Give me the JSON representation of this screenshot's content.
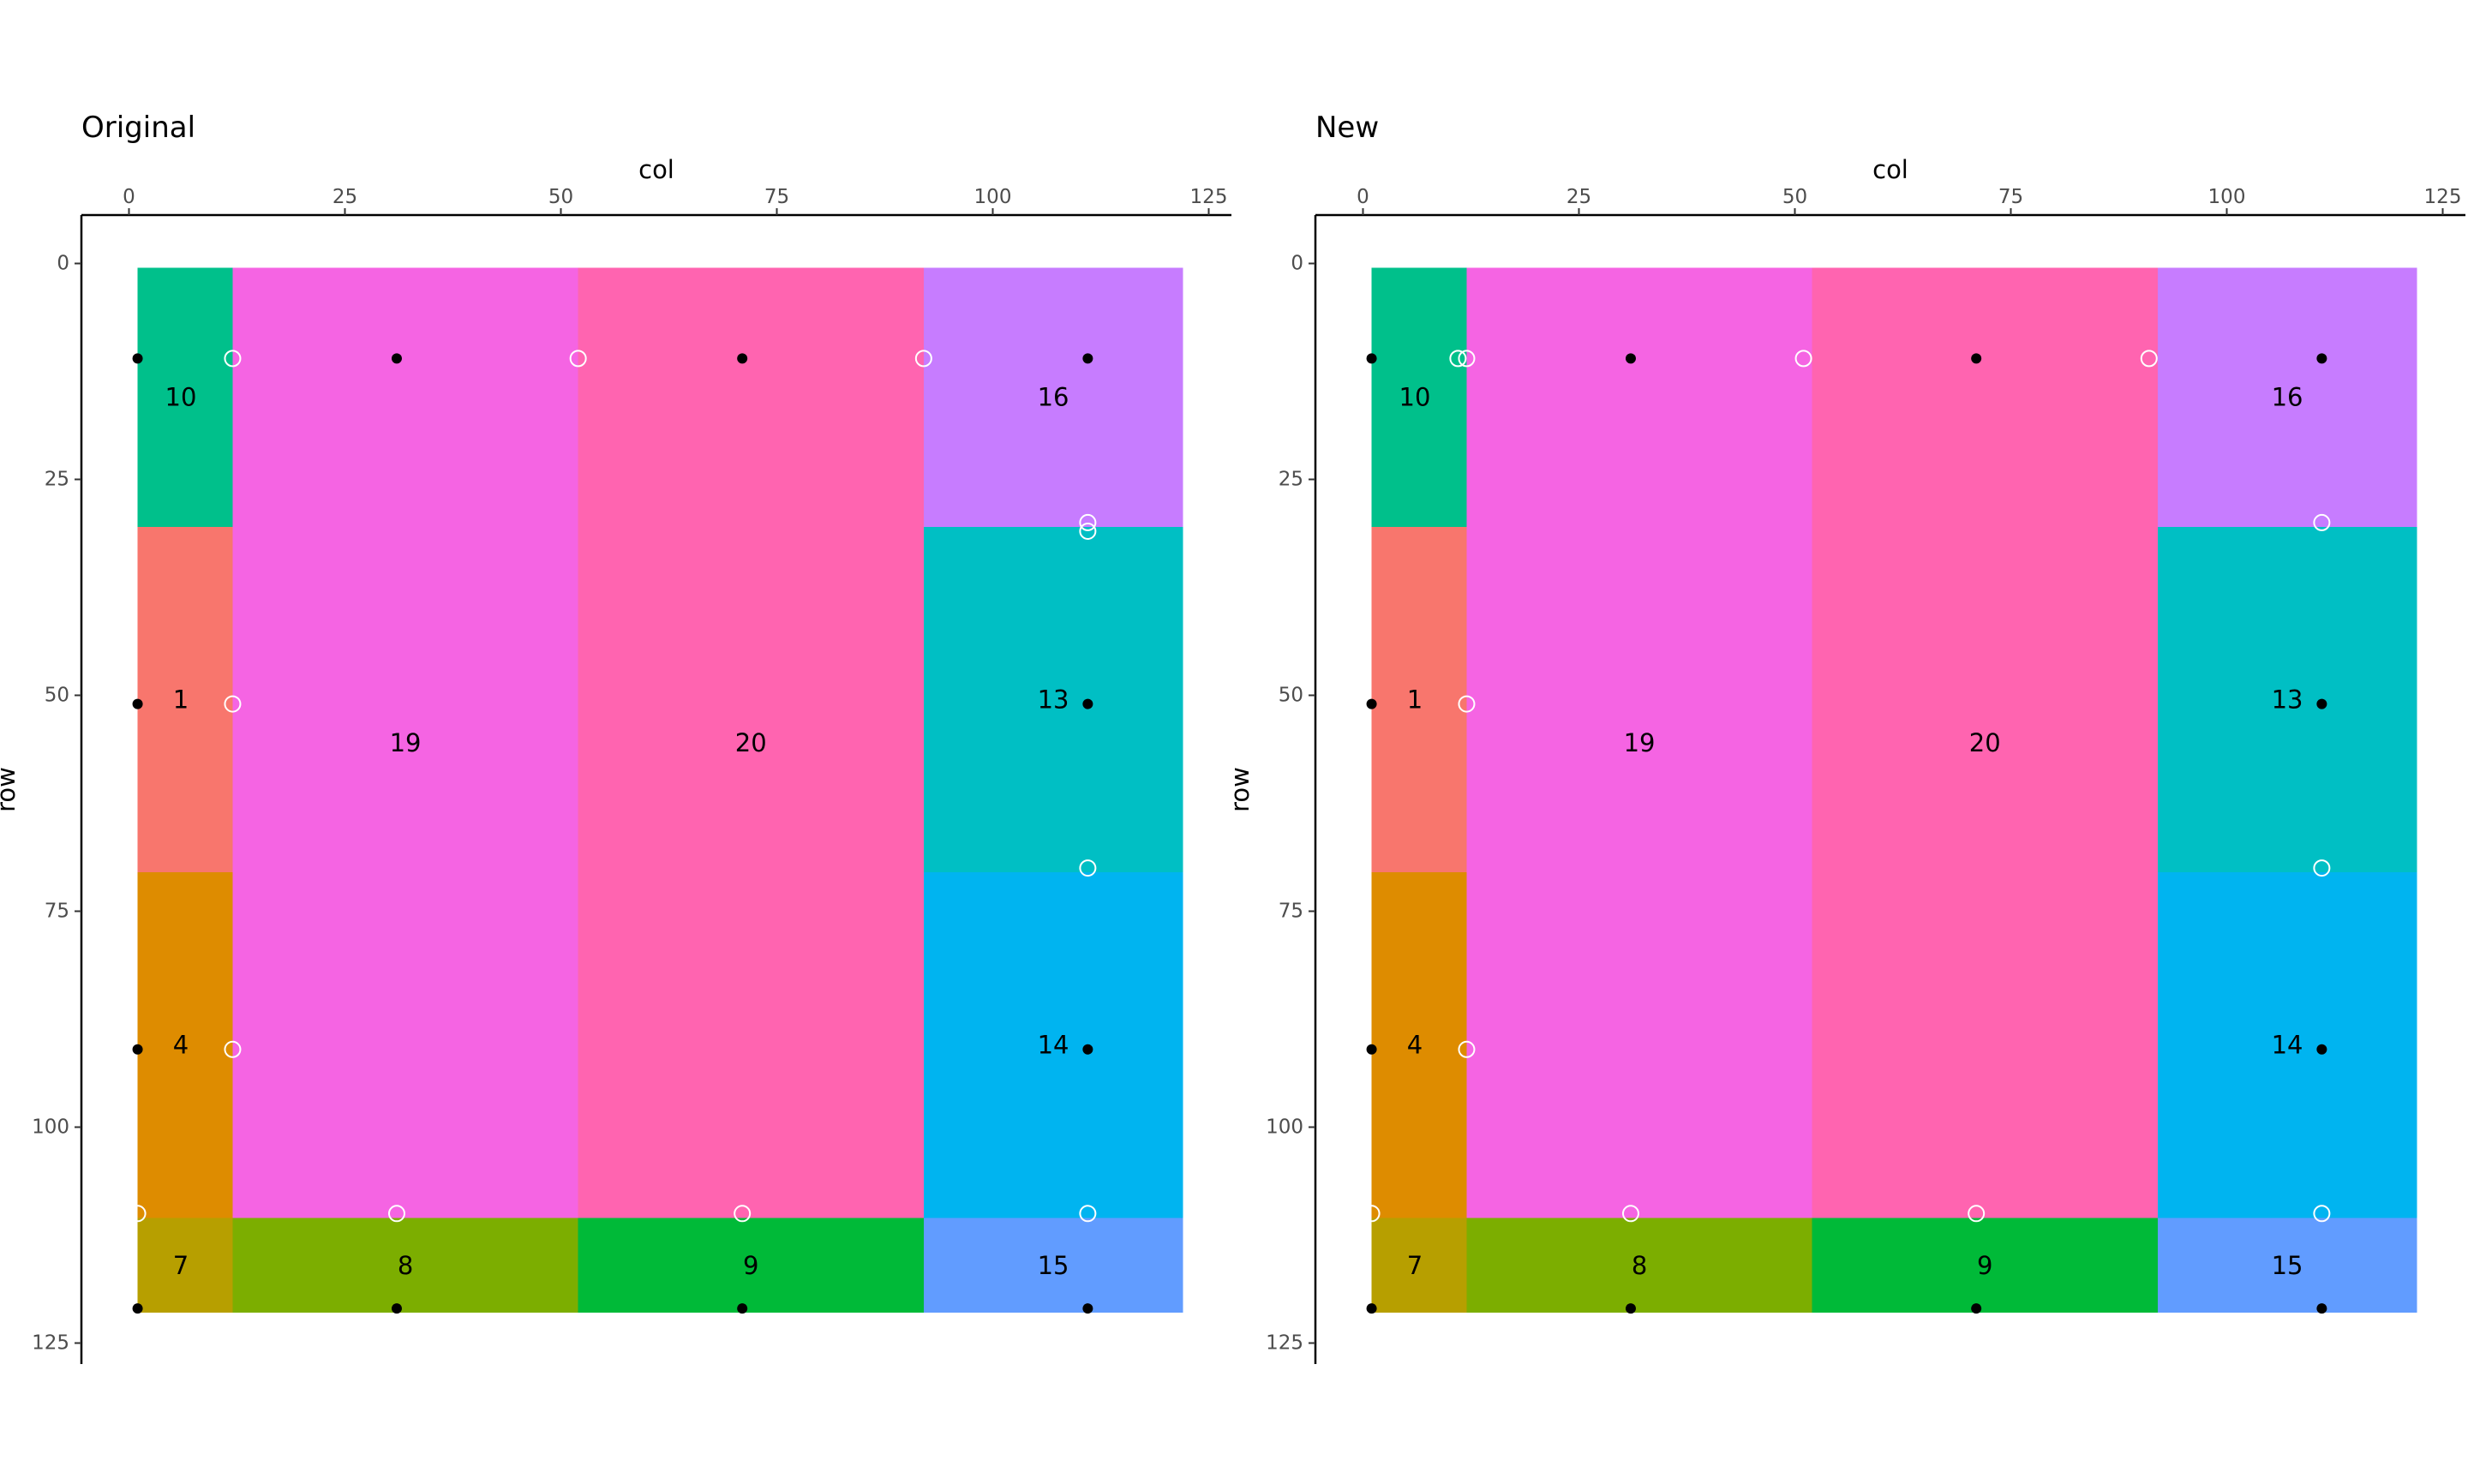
{
  "colors": {
    "1": "#F8766D",
    "4": "#DE8C00",
    "7": "#B79F00",
    "8": "#7CAE00",
    "9": "#00BA38",
    "10": "#00C08B",
    "13": "#00BFC4",
    "14": "#00B4F0",
    "15": "#619CFF",
    "16": "#C77CFF",
    "19": "#F564E3",
    "20": "#FF64B0",
    "point_filled": "#000000",
    "point_open": "#ffffff",
    "axis": "#000000"
  },
  "chart_data": [
    {
      "type": "heatmap",
      "title": "Original",
      "xlabel": "col",
      "ylabel": "row",
      "xlim": [
        -5,
        127
      ],
      "ylim": [
        -6,
        127
      ],
      "x_axis_position": "top",
      "y_reversed": true,
      "grid": false,
      "x_ticks": [
        0,
        25,
        50,
        75,
        100,
        125
      ],
      "y_ticks": [
        0,
        25,
        50,
        75,
        100,
        125
      ],
      "regions": [
        {
          "id": "10",
          "x": [
            1,
            12
          ],
          "y": [
            0.5,
            30.5
          ]
        },
        {
          "id": "1",
          "x": [
            1,
            12
          ],
          "y": [
            30.5,
            70.5
          ]
        },
        {
          "id": "4",
          "x": [
            1,
            12
          ],
          "y": [
            70.5,
            110.5
          ]
        },
        {
          "id": "7",
          "x": [
            1,
            12
          ],
          "y": [
            110.5,
            121.5
          ]
        },
        {
          "id": "19",
          "x": [
            12,
            52
          ],
          "y": [
            0.5,
            110.5
          ]
        },
        {
          "id": "20",
          "x": [
            52,
            92
          ],
          "y": [
            0.5,
            110.5
          ]
        },
        {
          "id": "8",
          "x": [
            12,
            52
          ],
          "y": [
            110.5,
            121.5
          ]
        },
        {
          "id": "9",
          "x": [
            52,
            92
          ],
          "y": [
            110.5,
            121.5
          ]
        },
        {
          "id": "16",
          "x": [
            92,
            122
          ],
          "y": [
            0.5,
            30.5
          ]
        },
        {
          "id": "13",
          "x": [
            92,
            122
          ],
          "y": [
            30.5,
            70.5
          ]
        },
        {
          "id": "14",
          "x": [
            92,
            122
          ],
          "y": [
            70.5,
            110.5
          ]
        },
        {
          "id": "15",
          "x": [
            92,
            122
          ],
          "y": [
            110.5,
            121.5
          ]
        }
      ],
      "labels": [
        {
          "text": "10",
          "x": 6,
          "y": 15.5
        },
        {
          "text": "1",
          "x": 6,
          "y": 50.5
        },
        {
          "text": "4",
          "x": 6,
          "y": 90.5
        },
        {
          "text": "7",
          "x": 6,
          "y": 116
        },
        {
          "text": "19",
          "x": 32,
          "y": 55.5
        },
        {
          "text": "20",
          "x": 72,
          "y": 55.5
        },
        {
          "text": "8",
          "x": 32,
          "y": 116
        },
        {
          "text": "9",
          "x": 72,
          "y": 116
        },
        {
          "text": "16",
          "x": 107,
          "y": 15.5
        },
        {
          "text": "13",
          "x": 107,
          "y": 50.5
        },
        {
          "text": "14",
          "x": 107,
          "y": 90.5
        },
        {
          "text": "15",
          "x": 107,
          "y": 116
        }
      ],
      "filled_points": [
        {
          "x": 1,
          "y": 11
        },
        {
          "x": 31,
          "y": 11
        },
        {
          "x": 71,
          "y": 11
        },
        {
          "x": 111,
          "y": 11
        },
        {
          "x": 1,
          "y": 51
        },
        {
          "x": 111,
          "y": 51
        },
        {
          "x": 1,
          "y": 91
        },
        {
          "x": 111,
          "y": 91
        },
        {
          "x": 1,
          "y": 121
        },
        {
          "x": 31,
          "y": 121
        },
        {
          "x": 71,
          "y": 121
        },
        {
          "x": 111,
          "y": 121
        }
      ],
      "open_points": [
        {
          "x": 12,
          "y": 11
        },
        {
          "x": 52,
          "y": 11
        },
        {
          "x": 92,
          "y": 11
        },
        {
          "x": 111,
          "y": 30
        },
        {
          "x": 111,
          "y": 31
        },
        {
          "x": 12,
          "y": 51
        },
        {
          "x": 111,
          "y": 70
        },
        {
          "x": 12,
          "y": 91
        },
        {
          "x": 1,
          "y": 110
        },
        {
          "x": 31,
          "y": 110
        },
        {
          "x": 71,
          "y": 110
        },
        {
          "x": 111,
          "y": 110
        }
      ]
    },
    {
      "type": "heatmap",
      "title": "New",
      "xlabel": "col",
      "ylabel": "row",
      "xlim": [
        -5,
        127
      ],
      "ylim": [
        -6,
        127
      ],
      "x_axis_position": "top",
      "y_reversed": true,
      "grid": false,
      "x_ticks": [
        0,
        25,
        50,
        75,
        100,
        125
      ],
      "y_ticks": [
        0,
        25,
        50,
        75,
        100,
        125
      ],
      "regions": [
        {
          "id": "10",
          "x": [
            1,
            12
          ],
          "y": [
            0.5,
            30.5
          ]
        },
        {
          "id": "1",
          "x": [
            1,
            12
          ],
          "y": [
            30.5,
            70.5
          ]
        },
        {
          "id": "4",
          "x": [
            1,
            12
          ],
          "y": [
            70.5,
            110.5
          ]
        },
        {
          "id": "7",
          "x": [
            1,
            12
          ],
          "y": [
            110.5,
            121.5
          ]
        },
        {
          "id": "19",
          "x": [
            12,
            52
          ],
          "y": [
            0.5,
            110.5
          ]
        },
        {
          "id": "20",
          "x": [
            52,
            92
          ],
          "y": [
            0.5,
            110.5
          ]
        },
        {
          "id": "8",
          "x": [
            12,
            52
          ],
          "y": [
            110.5,
            121.5
          ]
        },
        {
          "id": "9",
          "x": [
            52,
            92
          ],
          "y": [
            110.5,
            121.5
          ]
        },
        {
          "id": "16",
          "x": [
            92,
            122
          ],
          "y": [
            0.5,
            30.5
          ]
        },
        {
          "id": "13",
          "x": [
            92,
            122
          ],
          "y": [
            30.5,
            70.5
          ]
        },
        {
          "id": "14",
          "x": [
            92,
            122
          ],
          "y": [
            70.5,
            110.5
          ]
        },
        {
          "id": "15",
          "x": [
            92,
            122
          ],
          "y": [
            110.5,
            121.5
          ]
        }
      ],
      "labels": [
        {
          "text": "10",
          "x": 6,
          "y": 15.5
        },
        {
          "text": "1",
          "x": 6,
          "y": 50.5
        },
        {
          "text": "4",
          "x": 6,
          "y": 90.5
        },
        {
          "text": "7",
          "x": 6,
          "y": 116
        },
        {
          "text": "19",
          "x": 32,
          "y": 55.5
        },
        {
          "text": "20",
          "x": 72,
          "y": 55.5
        },
        {
          "text": "8",
          "x": 32,
          "y": 116
        },
        {
          "text": "9",
          "x": 72,
          "y": 116
        },
        {
          "text": "16",
          "x": 107,
          "y": 15.5
        },
        {
          "text": "13",
          "x": 107,
          "y": 50.5
        },
        {
          "text": "14",
          "x": 107,
          "y": 90.5
        },
        {
          "text": "15",
          "x": 107,
          "y": 116
        }
      ],
      "filled_points": [
        {
          "x": 1,
          "y": 11
        },
        {
          "x": 31,
          "y": 11
        },
        {
          "x": 71,
          "y": 11
        },
        {
          "x": 111,
          "y": 11
        },
        {
          "x": 1,
          "y": 51
        },
        {
          "x": 111,
          "y": 51
        },
        {
          "x": 1,
          "y": 91
        },
        {
          "x": 111,
          "y": 91
        },
        {
          "x": 1,
          "y": 121
        },
        {
          "x": 31,
          "y": 121
        },
        {
          "x": 71,
          "y": 121
        },
        {
          "x": 111,
          "y": 121
        }
      ],
      "open_points": [
        {
          "x": 11,
          "y": 11
        },
        {
          "x": 12,
          "y": 11
        },
        {
          "x": 51,
          "y": 11
        },
        {
          "x": 91,
          "y": 11
        },
        {
          "x": 111,
          "y": 30
        },
        {
          "x": 12,
          "y": 51
        },
        {
          "x": 111,
          "y": 70
        },
        {
          "x": 12,
          "y": 91
        },
        {
          "x": 1,
          "y": 110
        },
        {
          "x": 31,
          "y": 110
        },
        {
          "x": 71,
          "y": 110
        },
        {
          "x": 111,
          "y": 110
        }
      ]
    }
  ]
}
